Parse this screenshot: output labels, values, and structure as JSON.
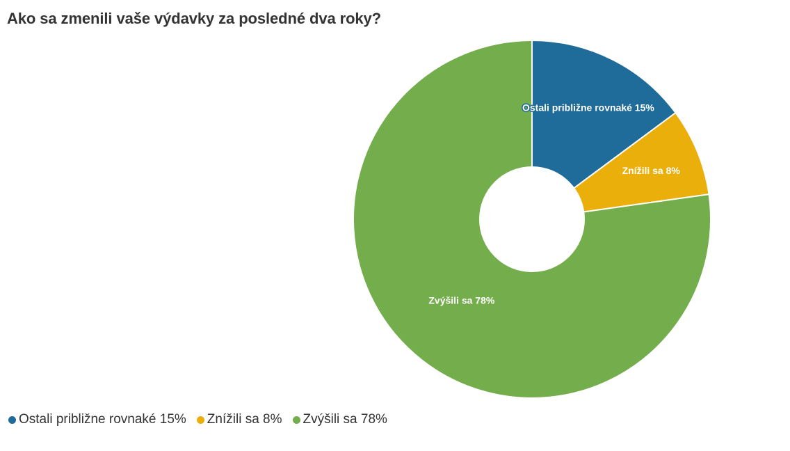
{
  "chart_data": {
    "type": "pie",
    "title": "Ako sa zmenili vaše výdavky za posledné dva roky?",
    "legend_position": "bottom-left",
    "donut": true,
    "slices": [
      {
        "label": "Ostali približne rovnaké",
        "value": 15,
        "display": "Ostali približne rovnaké 15%",
        "color": "#1f6b99"
      },
      {
        "label": "Znížili sa",
        "value": 8,
        "display": "Znížili sa 8%",
        "color": "#ebaf0b"
      },
      {
        "label": "Zvýšili sa",
        "value": 78,
        "display": "Zvýšili sa 78%",
        "color": "#74ad4b"
      }
    ]
  }
}
